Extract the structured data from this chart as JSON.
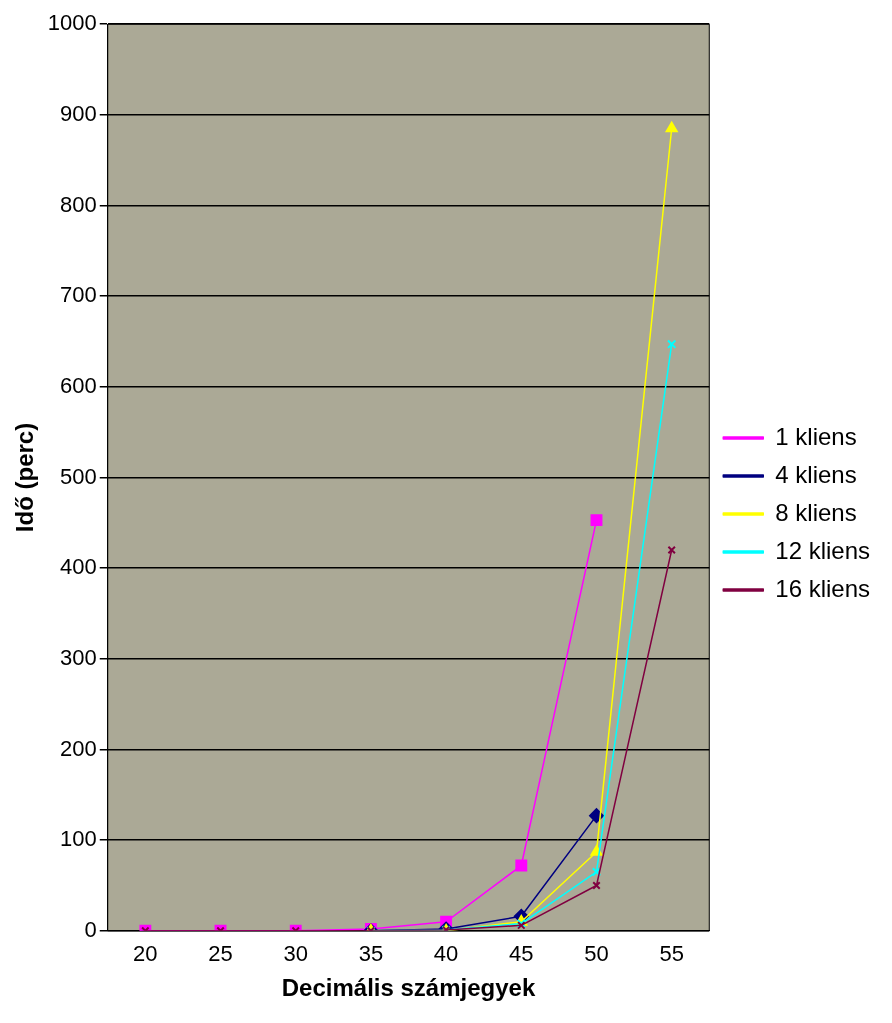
{
  "chart_data": {
    "type": "line",
    "xlabel": "Decimális számjegyek",
    "ylabel": "Idő (perc)",
    "categories": [
      "20",
      "25",
      "30",
      "35",
      "40",
      "45",
      "50",
      "55"
    ],
    "ylim": [
      0,
      1000
    ],
    "yticks": [
      0,
      100,
      200,
      300,
      400,
      500,
      600,
      700,
      800,
      900,
      1000
    ],
    "grid": "y",
    "legend": "right",
    "series": [
      {
        "name": "1 kliens",
        "color": "#ff00ff",
        "marker": "square",
        "values": [
          0,
          0,
          0,
          2,
          10,
          72,
          453,
          null
        ]
      },
      {
        "name": "4 kliens",
        "color": "#000080",
        "marker": "diamond",
        "values": [
          null,
          null,
          null,
          0,
          2,
          16,
          127,
          null
        ]
      },
      {
        "name": "8 kliens",
        "color": "#ffff00",
        "marker": "triangle",
        "values": [
          null,
          null,
          null,
          0,
          0,
          10,
          87,
          885
        ]
      },
      {
        "name": "12 kliens",
        "color": "#00ffff",
        "marker": "cross",
        "values": [
          null,
          null,
          null,
          0,
          1,
          8,
          65,
          647
        ]
      },
      {
        "name": "16 kliens",
        "color": "#800040",
        "marker": "cross",
        "values": [
          0,
          0,
          0,
          0,
          1,
          6,
          50,
          420
        ]
      }
    ]
  }
}
